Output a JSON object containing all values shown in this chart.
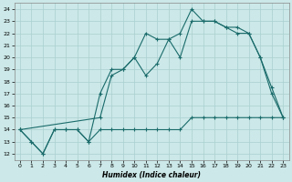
{
  "xlabel": "Humidex (Indice chaleur)",
  "bg_color": "#cce8e8",
  "grid_color": "#aacfcf",
  "line_color": "#1a6b6b",
  "xlim": [
    -0.5,
    23.5
  ],
  "ylim": [
    11.5,
    24.5
  ],
  "xticks": [
    0,
    1,
    2,
    3,
    4,
    5,
    6,
    7,
    8,
    9,
    10,
    11,
    12,
    13,
    14,
    15,
    16,
    17,
    18,
    19,
    20,
    21,
    22,
    23
  ],
  "yticks": [
    12,
    13,
    14,
    15,
    16,
    17,
    18,
    19,
    20,
    21,
    22,
    23,
    24
  ],
  "line1_x": [
    0,
    1,
    2,
    3,
    4,
    5,
    6,
    7,
    8,
    9,
    10,
    11,
    12,
    13,
    14,
    15,
    16,
    17,
    18,
    19,
    20,
    21,
    22,
    23
  ],
  "line1_y": [
    14,
    13,
    12,
    14,
    14,
    14,
    13,
    14,
    14,
    14,
    14,
    14,
    14,
    14,
    14,
    15,
    15,
    15,
    15,
    15,
    15,
    15,
    15,
    15
  ],
  "line2_x": [
    0,
    1,
    2,
    3,
    4,
    5,
    6,
    7,
    8,
    9,
    10,
    11,
    12,
    13,
    14,
    15,
    16,
    17,
    18,
    19,
    20,
    21,
    22,
    23
  ],
  "line2_y": [
    14,
    13,
    12,
    14,
    14,
    14,
    13,
    17,
    19,
    19,
    20,
    22,
    21.5,
    21.5,
    20,
    23,
    23,
    23,
    22.5,
    22,
    22,
    20,
    17.5,
    15
  ],
  "line3_x": [
    0,
    7,
    8,
    9,
    10,
    11,
    12,
    13,
    14,
    15,
    16,
    17,
    18,
    19,
    20,
    21,
    22,
    23
  ],
  "line3_y": [
    14,
    15,
    18.5,
    19,
    20,
    18.5,
    19.5,
    21.5,
    22,
    24,
    23,
    23,
    22.5,
    22.5,
    22,
    20,
    17,
    15
  ]
}
